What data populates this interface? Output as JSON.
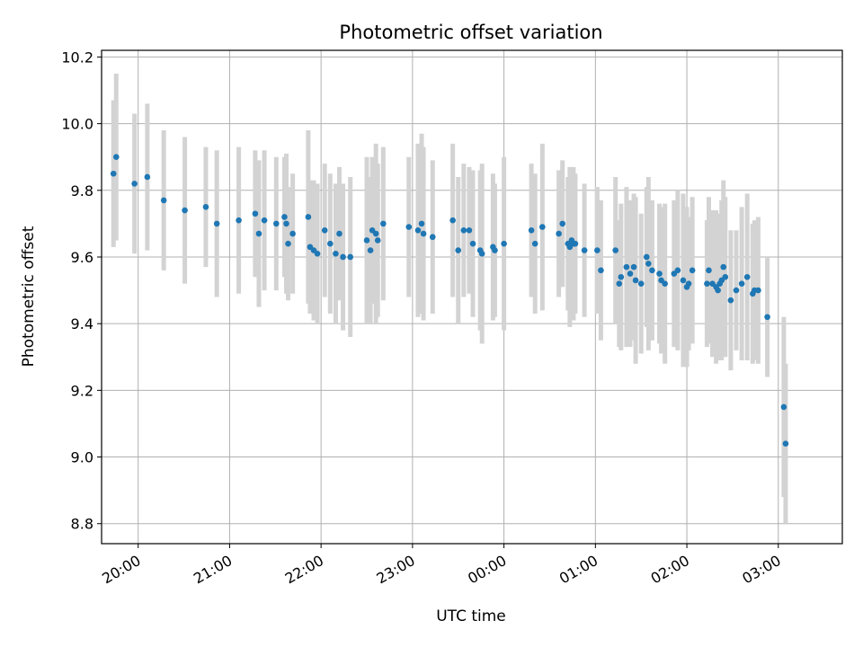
{
  "chart_data": {
    "type": "scatter",
    "title": "Photometric offset variation",
    "xlabel": "UTC time",
    "ylabel": "Photometric offset",
    "x_unit": "hours",
    "xlim": [
      19.6,
      27.7
    ],
    "ylim": [
      8.74,
      10.22
    ],
    "yticks": [
      8.8,
      9.0,
      9.2,
      9.4,
      9.6,
      9.8,
      10.0,
      10.2
    ],
    "ytick_labels": [
      "8.8",
      "9.0",
      "9.2",
      "9.4",
      "9.6",
      "9.8",
      "10.0",
      "10.2"
    ],
    "xticks": [
      20,
      21,
      22,
      23,
      24,
      25,
      26,
      27
    ],
    "xtick_labels": [
      "20:00",
      "21:00",
      "22:00",
      "23:00",
      "00:00",
      "01:00",
      "02:00",
      "03:00"
    ],
    "grid": true,
    "colors": {
      "marker": "#1f77b4",
      "errorbar": "#d3d3d3",
      "grid": "#b0b0b0"
    },
    "points": [
      [
        19.73,
        9.85,
        0.22
      ],
      [
        19.76,
        9.9,
        0.25
      ],
      [
        19.96,
        9.82,
        0.21
      ],
      [
        20.1,
        9.84,
        0.22
      ],
      [
        20.28,
        9.77,
        0.21
      ],
      [
        20.51,
        9.74,
        0.22
      ],
      [
        20.74,
        9.75,
        0.18
      ],
      [
        20.86,
        9.7,
        0.22
      ],
      [
        21.1,
        9.71,
        0.22
      ],
      [
        21.28,
        9.73,
        0.19
      ],
      [
        21.32,
        9.67,
        0.22
      ],
      [
        21.38,
        9.71,
        0.21
      ],
      [
        21.51,
        9.7,
        0.2
      ],
      [
        21.6,
        9.72,
        0.18
      ],
      [
        21.62,
        9.7,
        0.21
      ],
      [
        21.64,
        9.64,
        0.17
      ],
      [
        21.69,
        9.67,
        0.18
      ],
      [
        21.86,
        9.72,
        0.26
      ],
      [
        21.88,
        9.63,
        0.2
      ],
      [
        21.92,
        9.62,
        0.21
      ],
      [
        21.96,
        9.61,
        0.21
      ],
      [
        22.04,
        9.68,
        0.2
      ],
      [
        22.1,
        9.64,
        0.21
      ],
      [
        22.16,
        9.61,
        0.21
      ],
      [
        22.2,
        9.67,
        0.2
      ],
      [
        22.24,
        9.6,
        0.22
      ],
      [
        22.32,
        9.6,
        0.24
      ],
      [
        22.5,
        9.65,
        0.25
      ],
      [
        22.54,
        9.62,
        0.22
      ],
      [
        22.56,
        9.68,
        0.22
      ],
      [
        22.6,
        9.67,
        0.27
      ],
      [
        22.62,
        9.65,
        0.23
      ],
      [
        22.68,
        9.7,
        0.23
      ],
      [
        22.96,
        9.69,
        0.21
      ],
      [
        23.06,
        9.68,
        0.26
      ],
      [
        23.1,
        9.7,
        0.27
      ],
      [
        23.12,
        9.67,
        0.26
      ],
      [
        23.22,
        9.66,
        0.23
      ],
      [
        23.44,
        9.71,
        0.23
      ],
      [
        23.5,
        9.62,
        0.22
      ],
      [
        23.56,
        9.68,
        0.2
      ],
      [
        23.62,
        9.68,
        0.19
      ],
      [
        23.66,
        9.64,
        0.22
      ],
      [
        23.74,
        9.62,
        0.24
      ],
      [
        23.76,
        9.61,
        0.27
      ],
      [
        23.88,
        9.63,
        0.22
      ],
      [
        23.9,
        9.62,
        0.2
      ],
      [
        24.0,
        9.64,
        0.26
      ],
      [
        24.3,
        9.68,
        0.2
      ],
      [
        24.34,
        9.64,
        0.21
      ],
      [
        24.42,
        9.69,
        0.25
      ],
      [
        24.6,
        9.67,
        0.19
      ],
      [
        24.64,
        9.7,
        0.19
      ],
      [
        24.7,
        9.64,
        0.2
      ],
      [
        24.72,
        9.63,
        0.24
      ],
      [
        24.74,
        9.65,
        0.21
      ],
      [
        24.76,
        9.64,
        0.23
      ],
      [
        24.78,
        9.64,
        0.21
      ],
      [
        24.88,
        9.62,
        0.2
      ],
      [
        25.02,
        9.62,
        0.19
      ],
      [
        25.06,
        9.56,
        0.21
      ],
      [
        25.22,
        9.62,
        0.22
      ],
      [
        25.26,
        9.52,
        0.19
      ],
      [
        25.28,
        9.54,
        0.22
      ],
      [
        25.34,
        9.57,
        0.24
      ],
      [
        25.38,
        9.55,
        0.22
      ],
      [
        25.42,
        9.57,
        0.22
      ],
      [
        25.44,
        9.53,
        0.25
      ],
      [
        25.5,
        9.52,
        0.21
      ],
      [
        25.56,
        9.6,
        0.21
      ],
      [
        25.58,
        9.58,
        0.26
      ],
      [
        25.62,
        9.56,
        0.21
      ],
      [
        25.7,
        9.55,
        0.21
      ],
      [
        25.72,
        9.53,
        0.22
      ],
      [
        25.76,
        9.52,
        0.24
      ],
      [
        25.86,
        9.55,
        0.22
      ],
      [
        25.9,
        9.56,
        0.24
      ],
      [
        25.96,
        9.53,
        0.26
      ],
      [
        26.0,
        9.51,
        0.24
      ],
      [
        26.02,
        9.52,
        0.2
      ],
      [
        26.06,
        9.56,
        0.22
      ],
      [
        26.22,
        9.52,
        0.19
      ],
      [
        26.24,
        9.56,
        0.22
      ],
      [
        26.28,
        9.52,
        0.22
      ],
      [
        26.32,
        9.51,
        0.23
      ],
      [
        26.34,
        9.5,
        0.21
      ],
      [
        26.36,
        9.52,
        0.21
      ],
      [
        26.38,
        9.53,
        0.24
      ],
      [
        26.4,
        9.57,
        0.26
      ],
      [
        26.42,
        9.54,
        0.24
      ],
      [
        26.48,
        9.47,
        0.21
      ],
      [
        26.54,
        9.5,
        0.18
      ],
      [
        26.6,
        9.52,
        0.23
      ],
      [
        26.66,
        9.54,
        0.25
      ],
      [
        26.72,
        9.49,
        0.21
      ],
      [
        26.74,
        9.5,
        0.21
      ],
      [
        26.78,
        9.5,
        0.22
      ],
      [
        26.88,
        9.42,
        0.18
      ],
      [
        27.06,
        9.15,
        0.27
      ],
      [
        27.08,
        9.04,
        0.24
      ]
    ]
  }
}
